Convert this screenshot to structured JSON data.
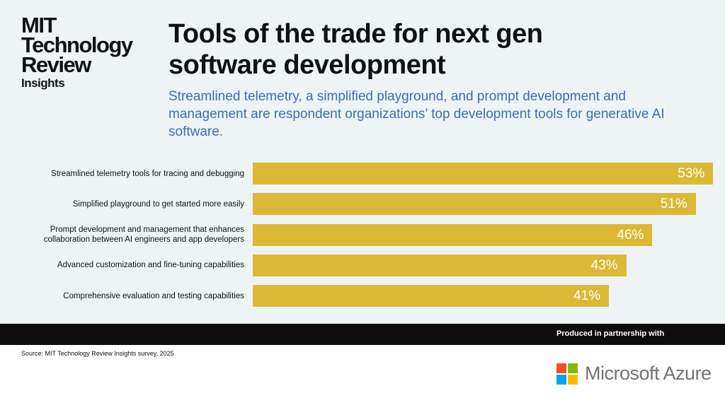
{
  "logo": {
    "lines": [
      "MIT",
      "Technology",
      "Review",
      "Insights"
    ]
  },
  "chart_data": {
    "type": "bar",
    "orientation": "horizontal",
    "title": "Tools of the trade for next gen software development",
    "subtitle": "Streamlined telemetry, a simplified playground, and prompt development and management are respondent organizations’ top development tools for generative AI software.",
    "categories": [
      "Streamlined telemetry tools for tracing and debugging",
      "Simplified playground to get started more easily",
      "Prompt development and management that enhances collaboration between AI engineers and app developers",
      "Advanced customization and fine-tuning capabilities",
      "Comprehensive evaluation and testing capabilities"
    ],
    "values": [
      53,
      51,
      46,
      43,
      41
    ],
    "value_labels": [
      "53%",
      "51%",
      "46%",
      "43%",
      "41%"
    ],
    "color": "#dbb935"
  },
  "footer": {
    "partner_text": "Produced in partnership with",
    "source": "Source: MIT Technology Review Insights survey, 2025",
    "partner": "Microsoft Azure"
  }
}
